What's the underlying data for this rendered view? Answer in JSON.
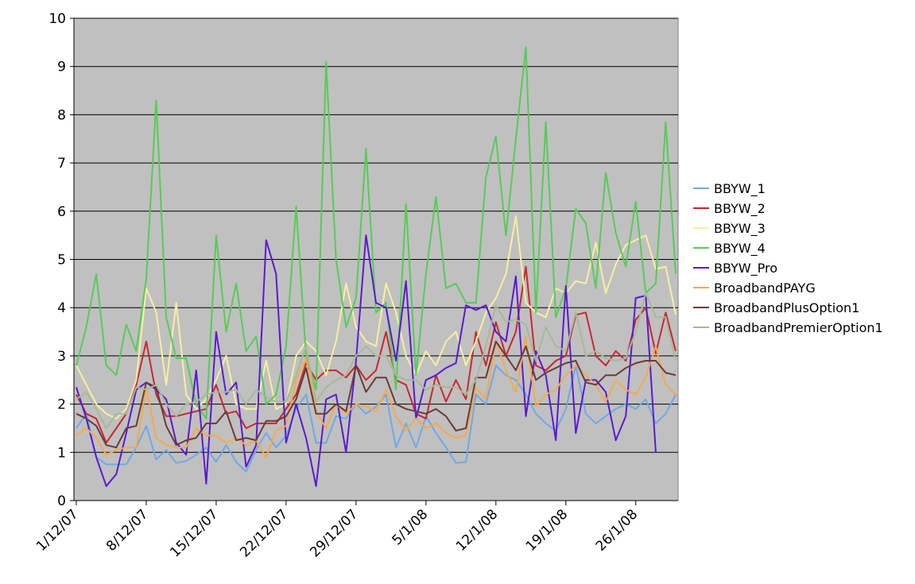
{
  "chart_data": {
    "type": "line",
    "title": "",
    "xlabel": "",
    "ylabel": "",
    "ylim": [
      0,
      10
    ],
    "yticks": [
      "0",
      "1",
      "2",
      "3",
      "4",
      "5",
      "6",
      "7",
      "8",
      "9",
      "10"
    ],
    "xtick_labels": [
      "1/12/07",
      "8/12/07",
      "15/12/07",
      "22/12/07",
      "29/12/07",
      "5/1/08",
      "12/1/08",
      "19/1/08",
      "26/1/08"
    ],
    "x_count": 61,
    "grid": "horizontal",
    "legend_position": "right",
    "background_color": "#c0c0c0",
    "series": [
      {
        "name": "BBYW_1",
        "color": "#6fa8e8",
        "values": [
          1.5,
          1.8,
          0.9,
          0.75,
          0.75,
          0.75,
          1.1,
          1.55,
          0.85,
          1.05,
          0.78,
          0.82,
          0.95,
          1.1,
          0.8,
          1.15,
          0.8,
          0.6,
          1.05,
          1.4,
          1.1,
          1.35,
          1.9,
          2.2,
          1.2,
          1.2,
          1.75,
          1.7,
          2.0,
          1.8,
          1.95,
          2.2,
          1.1,
          1.6,
          1.1,
          1.75,
          1.4,
          1.1,
          0.78,
          0.8,
          2.2,
          2.0,
          2.8,
          2.6,
          2.5,
          2.2,
          1.8,
          1.6,
          1.45,
          1.9,
          2.8,
          1.8,
          1.6,
          1.75,
          1.9,
          2.0,
          1.9,
          2.1,
          1.6,
          1.8,
          2.2
        ]
      },
      {
        "name": "BBYW_2",
        "color": "#c8272f",
        "values": [
          2.2,
          1.8,
          1.7,
          1.2,
          1.5,
          1.8,
          2.4,
          3.3,
          2.2,
          1.75,
          1.75,
          1.8,
          1.85,
          1.9,
          2.4,
          1.8,
          1.85,
          1.5,
          1.6,
          1.6,
          1.6,
          1.9,
          2.2,
          2.85,
          2.5,
          2.7,
          2.7,
          2.55,
          2.8,
          2.5,
          2.7,
          3.5,
          2.5,
          2.4,
          1.8,
          1.7,
          2.6,
          2.05,
          2.5,
          2.1,
          3.5,
          2.8,
          3.7,
          3.0,
          3.5,
          4.85,
          2.8,
          2.7,
          2.9,
          3.0,
          3.85,
          3.9,
          3.0,
          2.8,
          3.1,
          2.9,
          3.75,
          4.0,
          3.05,
          3.9,
          3.1
        ]
      },
      {
        "name": "BBYW_3",
        "color": "#f5f0a0",
        "values": [
          2.8,
          2.4,
          2.0,
          1.8,
          1.7,
          1.9,
          2.5,
          4.4,
          3.9,
          2.4,
          4.1,
          2.2,
          1.9,
          2.1,
          2.5,
          3.0,
          2.0,
          1.9,
          1.9,
          2.9,
          1.9,
          2.0,
          3.0,
          3.3,
          3.1,
          2.6,
          3.3,
          4.5,
          3.6,
          3.3,
          3.2,
          4.5,
          3.9,
          3.0,
          2.6,
          3.1,
          2.8,
          3.3,
          3.5,
          2.8,
          3.3,
          3.9,
          4.2,
          4.7,
          5.9,
          4.1,
          3.9,
          3.8,
          4.4,
          4.3,
          4.55,
          4.5,
          5.35,
          4.3,
          4.9,
          5.3,
          5.4,
          5.5,
          4.8,
          4.85,
          3.85
        ]
      },
      {
        "name": "BBYW_4",
        "color": "#55cc55",
        "values": [
          2.8,
          3.6,
          4.7,
          2.8,
          2.6,
          3.65,
          3.1,
          4.6,
          8.3,
          3.8,
          2.95,
          2.95,
          2.0,
          1.7,
          5.5,
          3.5,
          4.5,
          3.1,
          3.4,
          2.0,
          2.2,
          3.2,
          6.1,
          3.0,
          2.3,
          9.1,
          5.0,
          3.6,
          4.2,
          7.3,
          3.9,
          4.1,
          2.3,
          6.15,
          2.6,
          4.7,
          6.3,
          4.4,
          4.5,
          4.1,
          4.1,
          6.7,
          7.55,
          5.5,
          7.5,
          9.4,
          3.9,
          7.85,
          3.8,
          4.4,
          6.05,
          5.75,
          4.4,
          6.8,
          5.55,
          4.85,
          6.2,
          4.3,
          4.5,
          7.85,
          4.7
        ]
      },
      {
        "name": "BBYW_Pro",
        "color": "#5a1ad0",
        "values": [
          2.35,
          1.7,
          0.9,
          0.3,
          0.55,
          1.4,
          2.3,
          2.45,
          2.3,
          2.1,
          1.2,
          0.95,
          2.7,
          0.35,
          3.5,
          2.2,
          2.45,
          0.7,
          1.15,
          5.4,
          4.7,
          1.2,
          2.0,
          1.3,
          0.3,
          2.1,
          2.2,
          1.0,
          2.9,
          5.5,
          4.1,
          4.0,
          2.9,
          4.55,
          1.7,
          2.5,
          2.6,
          2.75,
          2.85,
          4.05,
          3.95,
          4.05,
          3.5,
          3.3,
          4.65,
          1.75,
          3.1,
          2.6,
          1.25,
          4.45,
          1.4,
          2.5,
          2.5,
          2.25,
          1.25,
          1.75,
          4.2,
          4.25,
          1.0,
          null,
          null
        ]
      },
      {
        "name": "BroadbandPAYG",
        "color": "#f5a94a",
        "values": [
          1.35,
          1.5,
          1.3,
          0.95,
          1.05,
          1.1,
          1.1,
          2.35,
          1.3,
          1.15,
          1.1,
          1.1,
          1.5,
          1.35,
          1.35,
          1.2,
          1.3,
          1.15,
          1.25,
          0.9,
          1.45,
          1.55,
          2.5,
          2.95,
          1.85,
          1.5,
          2.0,
          1.8,
          2.0,
          1.95,
          1.85,
          2.3,
          1.75,
          1.45,
          1.7,
          1.5,
          1.6,
          1.4,
          1.3,
          1.35,
          2.35,
          2.1,
          3.3,
          2.7,
          2.25,
          3.4,
          1.95,
          2.2,
          2.3,
          2.6,
          2.8,
          2.6,
          2.4,
          2.05,
          2.5,
          2.3,
          2.2,
          2.55,
          3.2,
          2.4,
          2.2
        ]
      },
      {
        "name": "BroadbandPlusOption1",
        "color": "#6b3a3a",
        "values": [
          1.8,
          1.7,
          1.55,
          1.15,
          1.1,
          1.5,
          1.55,
          2.45,
          2.35,
          1.55,
          1.15,
          1.25,
          1.3,
          1.6,
          1.6,
          1.85,
          1.25,
          1.3,
          1.25,
          1.65,
          1.65,
          1.75,
          2.1,
          2.75,
          1.8,
          1.8,
          2.0,
          1.85,
          2.8,
          2.25,
          2.55,
          2.55,
          2.0,
          1.9,
          1.85,
          1.8,
          1.9,
          1.75,
          1.45,
          1.5,
          2.55,
          2.55,
          3.3,
          3.0,
          2.7,
          3.2,
          2.5,
          2.65,
          2.75,
          2.85,
          2.9,
          2.45,
          2.4,
          2.6,
          2.6,
          2.75,
          2.85,
          2.9,
          2.9,
          2.65,
          2.6
        ]
      },
      {
        "name": "BroadbandPremierOption1",
        "color": "#a8b898",
        "values": [
          2.1,
          2.25,
          1.9,
          1.5,
          1.8,
          1.8,
          2.35,
          2.3,
          2.4,
          2.0,
          1.75,
          2.0,
          2.05,
          2.2,
          2.25,
          2.25,
          2.3,
          2.0,
          2.3,
          2.15,
          2.05,
          2.05,
          2.6,
          3.2,
          2.05,
          2.35,
          2.5,
          2.6,
          3.0,
          3.2,
          3.0,
          3.0,
          2.6,
          2.5,
          2.5,
          2.3,
          2.4,
          2.35,
          2.35,
          2.2,
          2.5,
          3.2,
          4.05,
          3.7,
          3.75,
          3.65,
          2.9,
          3.6,
          3.2,
          3.1,
          3.9,
          3.0,
          3.1,
          2.95,
          2.9,
          2.95,
          3.5,
          4.3,
          3.8,
          3.8,
          2.9
        ]
      }
    ]
  }
}
